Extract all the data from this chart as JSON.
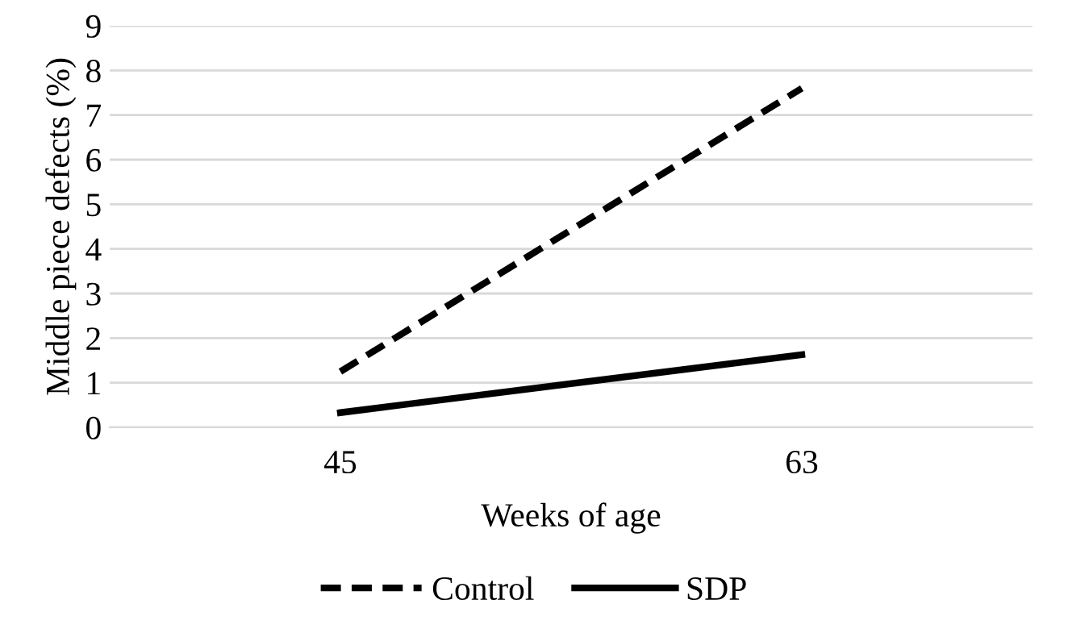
{
  "chart_data": {
    "type": "line",
    "xlabel": "Weeks of age",
    "ylabel": "Middle piece defects (%)",
    "categories": [
      "45",
      "63"
    ],
    "series": [
      {
        "name": "Control",
        "color": "#000000",
        "values": [
          1.25,
          7.6
        ],
        "line_style": "dashed"
      },
      {
        "name": "SDP",
        "color": "#000000",
        "values": [
          0.33,
          1.63
        ],
        "line_style": "solid"
      }
    ],
    "ylim": [
      0,
      9
    ],
    "yticks": [
      0,
      1,
      2,
      3,
      4,
      5,
      6,
      7,
      8,
      9
    ],
    "grid": "y",
    "legend": "bottom",
    "marker": "none"
  }
}
